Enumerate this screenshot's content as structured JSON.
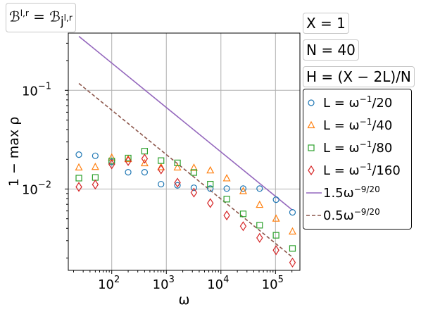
{
  "title_box": "ℬ^{l,r} = ℬ_j^{l,r}",
  "param_boxes": [
    "X = 1",
    "N = 40",
    "H = (X − 2L)/N"
  ],
  "chart_data": {
    "type": "scatter",
    "xlabel": "ω",
    "ylabel": "1 − max ρ",
    "xscale": "log",
    "yscale": "log",
    "xlim": [
      16,
      280000
    ],
    "ylim": [
      0.0015,
      0.38
    ],
    "grid": true,
    "x_ticks": [
      {
        "value": 100,
        "label": "10^2"
      },
      {
        "value": 1000,
        "label": "10^3"
      },
      {
        "value": 10000,
        "label": "10^4"
      },
      {
        "value": 100000,
        "label": "10^5"
      }
    ],
    "y_ticks": [
      {
        "value": 0.01,
        "label": "10^-2"
      },
      {
        "value": 0.1,
        "label": "10^-1"
      }
    ],
    "x": [
      25,
      50,
      100,
      200,
      400,
      800,
      1600,
      3200,
      6400,
      12800,
      25600,
      51200,
      102400,
      204800
    ],
    "series": [
      {
        "name": "L = ω^{-1}/20",
        "marker": "circle",
        "color": "#1f77b4",
        "values": [
          0.0223,
          0.0217,
          0.0188,
          0.0148,
          0.0148,
          0.0112,
          0.0109,
          0.0103,
          0.0101,
          0.0101,
          0.0101,
          0.0101,
          0.0078,
          0.0058
        ]
      },
      {
        "name": "L = ω^{-1}/40",
        "marker": "triangle",
        "color": "#ff7f0e",
        "values": [
          0.0165,
          0.0167,
          0.0208,
          0.0201,
          0.0182,
          0.0166,
          0.0165,
          0.0164,
          0.0154,
          0.0128,
          0.0095,
          0.0069,
          0.005,
          0.0037
        ]
      },
      {
        "name": "L = ω^{-1}/80",
        "marker": "square",
        "color": "#2ca02c",
        "values": [
          0.0129,
          0.0131,
          0.0192,
          0.0206,
          0.0242,
          0.0194,
          0.0184,
          0.0147,
          0.0112,
          0.0079,
          0.0056,
          0.0043,
          0.0034,
          0.0025
        ]
      },
      {
        "name": "L = ω^{-1}/160",
        "marker": "diamond",
        "color": "#d62728",
        "values": [
          0.0105,
          0.0111,
          0.0178,
          0.0192,
          0.0203,
          0.0158,
          0.0116,
          0.0092,
          0.0072,
          0.0054,
          0.0042,
          0.0032,
          0.0024,
          0.0018
        ]
      },
      {
        "name": "1.5ω^{-9/20}",
        "kind": "line",
        "coef": 1.5,
        "exponent": -0.45,
        "color": "#9467bd",
        "dash": "solid"
      },
      {
        "name": "0.5ω^{-9/20}",
        "kind": "line",
        "coef": 0.5,
        "exponent": -0.45,
        "color": "#8c564b",
        "dash": "dashed"
      }
    ]
  }
}
